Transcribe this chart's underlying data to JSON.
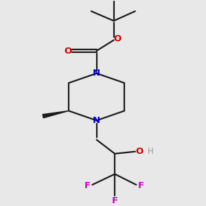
{
  "bg_color": "#e8e8e8",
  "bond_color": "#1a1a1a",
  "N_color": "#0000cc",
  "O_color": "#cc0000",
  "F_color": "#cc00cc",
  "H_color": "#999999",
  "line_width": 1.6,
  "xlim": [
    1.5,
    8.5
  ],
  "ylim": [
    0.3,
    9.7
  ]
}
